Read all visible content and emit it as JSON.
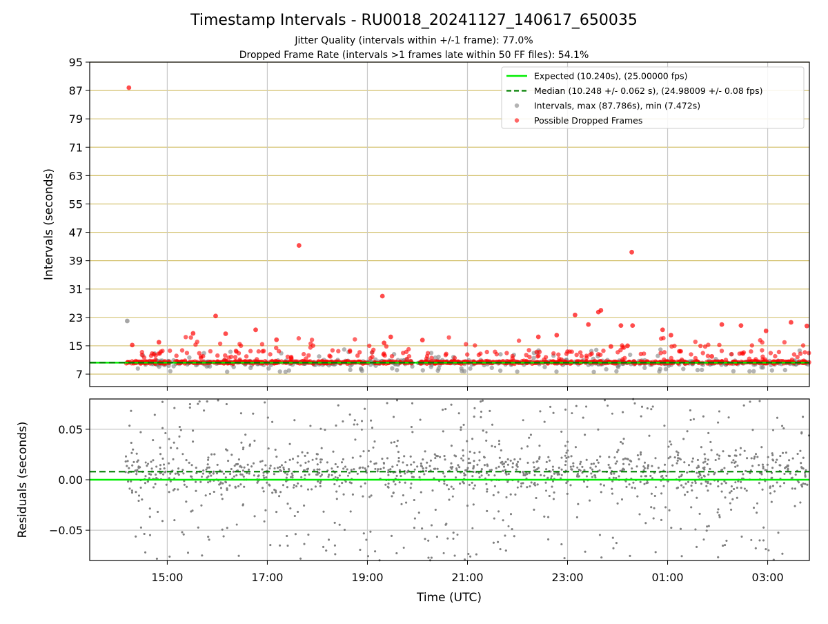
{
  "figure": {
    "title": "Timestamp Intervals - RU0018_20241127_140617_650035",
    "subtitle_1": "Jitter Quality (intervals within +/-1 frame): 77.0%",
    "subtitle_2": "Dropped Frame Rate (intervals >1 frames late within 50 FF files): 54.1%"
  },
  "colors": {
    "expected": "#00ee00",
    "median": "#007f00",
    "intervals": "#808080",
    "dropped": "#ff0000",
    "hgrid_top": "#d4c270",
    "grid": "#c8c8c8"
  },
  "chart_data": [
    {
      "type": "scatter",
      "panel": "intervals",
      "ylabel": "Intervals (seconds)",
      "ylim": [
        3.5,
        95
      ],
      "yticks": [
        7,
        15,
        23,
        31,
        39,
        47,
        55,
        63,
        71,
        79,
        87,
        95
      ],
      "xlim": [
        "13:27",
        "03:50"
      ],
      "grid": true,
      "legend_position": "upper right",
      "legend": [
        {
          "label": "Expected (10.240s), (25.00000 fps)",
          "marker": "solid-line",
          "color": "#00ee00"
        },
        {
          "label": "Median (10.248 +/- 0.062 s), (24.98009 +/- 0.08 fps)",
          "marker": "dashed-line",
          "color": "#007f00"
        },
        {
          "label": "Intervals, max (87.786s), min (7.472s)",
          "marker": "dot",
          "color": "#808080"
        },
        {
          "label": "Possible Dropped Frames",
          "marker": "dot",
          "color": "#ff0000"
        }
      ],
      "expected_interval": 10.24,
      "median_interval": 10.248,
      "time_range": [
        "14:10",
        "03:50"
      ],
      "notable_points": [
        {
          "x": "14:14",
          "y": 87.8,
          "series": "Possible Dropped Frames"
        },
        {
          "x": "14:12",
          "y": 22.0,
          "series": "Intervals"
        },
        {
          "x": "14:18",
          "y": 15.2,
          "series": "Possible Dropped Frames"
        },
        {
          "x": "14:50",
          "y": 16.0,
          "series": "Possible Dropped Frames"
        },
        {
          "x": "15:31",
          "y": 18.5,
          "series": "Possible Dropped Frames"
        },
        {
          "x": "15:58",
          "y": 23.4,
          "series": "Possible Dropped Frames"
        },
        {
          "x": "16:10",
          "y": 18.4,
          "series": "Possible Dropped Frames"
        },
        {
          "x": "16:46",
          "y": 19.5,
          "series": "Possible Dropped Frames"
        },
        {
          "x": "17:11",
          "y": 16.7,
          "series": "Possible Dropped Frames"
        },
        {
          "x": "17:38",
          "y": 43.3,
          "series": "Possible Dropped Frames"
        },
        {
          "x": "19:18",
          "y": 29.0,
          "series": "Possible Dropped Frames"
        },
        {
          "x": "19:20",
          "y": 15.8,
          "series": "Possible Dropped Frames"
        },
        {
          "x": "19:28",
          "y": 17.5,
          "series": "Possible Dropped Frames"
        },
        {
          "x": "20:06",
          "y": 16.6,
          "series": "Possible Dropped Frames"
        },
        {
          "x": "22:25",
          "y": 17.5,
          "series": "Possible Dropped Frames"
        },
        {
          "x": "22:47",
          "y": 18.0,
          "series": "Possible Dropped Frames"
        },
        {
          "x": "23:09",
          "y": 23.7,
          "series": "Possible Dropped Frames"
        },
        {
          "x": "23:25",
          "y": 21.0,
          "series": "Possible Dropped Frames"
        },
        {
          "x": "23:37",
          "y": 24.5,
          "series": "Possible Dropped Frames"
        },
        {
          "x": "23:40",
          "y": 25.0,
          "series": "Possible Dropped Frames"
        },
        {
          "x": "23:52",
          "y": 14.8,
          "series": "Possible Dropped Frames"
        },
        {
          "x": "00:04",
          "y": 20.7,
          "series": "Possible Dropped Frames"
        },
        {
          "x": "00:12",
          "y": 15.0,
          "series": "Possible Dropped Frames"
        },
        {
          "x": "00:17",
          "y": 41.4,
          "series": "Possible Dropped Frames"
        },
        {
          "x": "00:18",
          "y": 20.7,
          "series": "Possible Dropped Frames"
        },
        {
          "x": "00:54",
          "y": 19.5,
          "series": "Possible Dropped Frames"
        },
        {
          "x": "01:04",
          "y": 18.0,
          "series": "Possible Dropped Frames"
        },
        {
          "x": "01:53",
          "y": 12.0,
          "series": "Possible Dropped Frames"
        },
        {
          "x": "02:05",
          "y": 21.0,
          "series": "Possible Dropped Frames"
        },
        {
          "x": "02:28",
          "y": 20.7,
          "series": "Possible Dropped Frames"
        },
        {
          "x": "02:58",
          "y": 19.2,
          "series": "Possible Dropped Frames"
        },
        {
          "x": "03:28",
          "y": 21.6,
          "series": "Possible Dropped Frames"
        },
        {
          "x": "03:47",
          "y": 20.6,
          "series": "Possible Dropped Frames"
        }
      ]
    },
    {
      "type": "scatter",
      "panel": "residuals",
      "xlabel": "Time (UTC)",
      "ylabel": "Residuals (seconds)",
      "ylim": [
        -0.08,
        0.08
      ],
      "yticks": [
        -0.05,
        0.0,
        0.05
      ],
      "ytick_labels": [
        "−0.05",
        "0.00",
        "0.05"
      ],
      "xticks": [
        "15:00",
        "17:00",
        "19:00",
        "21:00",
        "23:00",
        "01:00",
        "03:00"
      ],
      "xlim": [
        "13:27",
        "03:50"
      ],
      "grid": true,
      "expected_residual": 0.0,
      "median_residual": 0.008,
      "residual_spread_typical": 0.015,
      "residual_spread_max": 0.08,
      "time_range": [
        "14:10",
        "03:50"
      ]
    }
  ]
}
